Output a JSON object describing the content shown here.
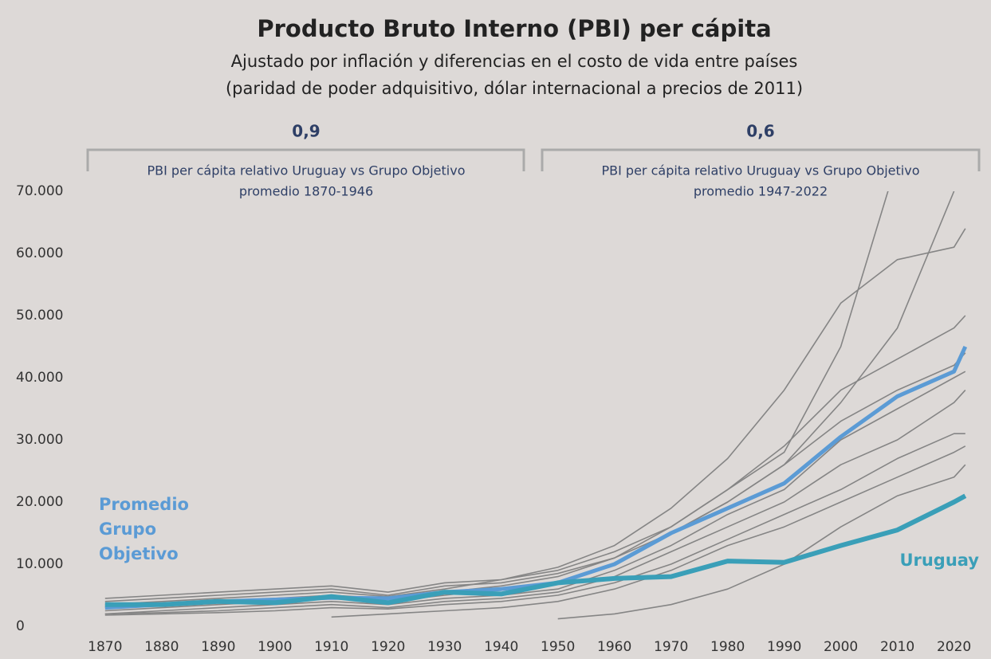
{
  "chart_data": {
    "type": "line",
    "title": "Producto Bruto Interno (PBI) per cápita",
    "subtitle": [
      "Ajustado por inflación y diferencias en el costo de vida entre países",
      "(paridad de poder adquisitivo, dólar internacional a precios de 2011)"
    ],
    "annotations": [
      {
        "value": "0,9",
        "text": [
          "PBI per cápita relativo Uruguay vs Grupo Objetivo",
          "promedio 1870-1946"
        ]
      },
      {
        "value": "0,6",
        "text": [
          "PBI per cápita relativo Uruguay vs Grupo Objetivo",
          "promedio 1947-2022"
        ]
      }
    ],
    "x": [
      1870,
      1880,
      1890,
      1900,
      1910,
      1920,
      1930,
      1940,
      1950,
      1960,
      1970,
      1980,
      1990,
      2000,
      2010,
      2020,
      2022
    ],
    "xlim": [
      1867,
      2024
    ],
    "xticks": [
      1870,
      1880,
      1890,
      1900,
      1910,
      1920,
      1930,
      1940,
      1950,
      1960,
      1970,
      1980,
      1990,
      2000,
      2010,
      2020
    ],
    "ylim": [
      0,
      70000
    ],
    "yticks": [
      0,
      {
        "value": 10000,
        "label": "10.000"
      },
      {
        "value": 20000,
        "label": "20.000"
      },
      {
        "value": 30000,
        "label": "30.000"
      },
      {
        "value": 40000,
        "label": "40.000"
      },
      {
        "value": 50000,
        "label": "50.000"
      },
      {
        "value": 60000,
        "label": "60.000"
      },
      {
        "value": 70000,
        "label": "70.000"
      }
    ],
    "series": [
      {
        "color": "#858585",
        "values": [
          4500,
          5000,
          5500,
          6000,
          6500,
          5500,
          7000,
          7500,
          9000,
          12000,
          16000,
          22000,
          28000,
          45000,
          75000,
          null,
          null
        ]
      },
      {
        "color": "#858585",
        "values": [
          4000,
          4500,
          5000,
          5500,
          6000,
          5000,
          6500,
          7000,
          8500,
          11000,
          15000,
          20000,
          26000,
          36000,
          48000,
          70000,
          null
        ]
      },
      {
        "color": "#858585",
        "values": [
          3500,
          4000,
          4500,
          5000,
          5500,
          4800,
          6000,
          7500,
          9500,
          13000,
          19000,
          27000,
          38000,
          52000,
          59000,
          61000,
          64000
        ]
      },
      {
        "color": "#858585",
        "values": [
          3000,
          3500,
          4000,
          4500,
          5000,
          4500,
          5500,
          6500,
          8000,
          11000,
          16000,
          22000,
          29000,
          38000,
          43000,
          48000,
          50000
        ]
      },
      {
        "color": "#858585",
        "values": [
          2500,
          3000,
          3500,
          4000,
          4500,
          4000,
          5000,
          6000,
          7000,
          10000,
          15000,
          20000,
          26000,
          33000,
          38000,
          42000,
          44000
        ]
      },
      {
        "color": "#858585",
        "values": [
          2000,
          2500,
          3000,
          3500,
          4000,
          3500,
          4500,
          5000,
          6000,
          9000,
          13000,
          18000,
          22000,
          30000,
          35000,
          40000,
          41000
        ]
      },
      {
        "color": "#858585",
        "values": [
          2000,
          2200,
          2500,
          3000,
          3500,
          3000,
          4000,
          4500,
          5500,
          8000,
          12000,
          16000,
          20000,
          26000,
          30000,
          36000,
          38000
        ]
      },
      {
        "color": "#858585",
        "values": [
          1800,
          2000,
          2200,
          2500,
          3000,
          2800,
          3500,
          4000,
          5000,
          7000,
          10000,
          14000,
          18000,
          22000,
          27000,
          31000,
          31000
        ]
      },
      {
        "color": "#858585",
        "values": [
          null,
          null,
          null,
          null,
          1500,
          2000,
          2500,
          3000,
          4000,
          6000,
          9000,
          13000,
          16000,
          20000,
          24000,
          28000,
          29000
        ]
      },
      {
        "color": "#858585",
        "values": [
          null,
          null,
          null,
          null,
          null,
          null,
          null,
          null,
          1200,
          2000,
          3500,
          6000,
          10000,
          16000,
          21000,
          24000,
          26000
        ]
      },
      {
        "name": [
          "Promedio",
          "Grupo",
          "Objetivo"
        ],
        "color": "#5b9bd5",
        "values": [
          3000,
          3500,
          4000,
          4300,
          4600,
          4500,
          5500,
          6000,
          7000,
          10000,
          15000,
          19000,
          23000,
          30500,
          37000,
          41000,
          45000
        ]
      },
      {
        "name": [
          "Uruguay"
        ],
        "color": "#3a9fb8",
        "values": [
          3500,
          3500,
          4000,
          3800,
          4800,
          3800,
          5500,
          5200,
          7000,
          7700,
          8000,
          10500,
          10300,
          13000,
          15500,
          20000,
          21000
        ]
      }
    ]
  }
}
